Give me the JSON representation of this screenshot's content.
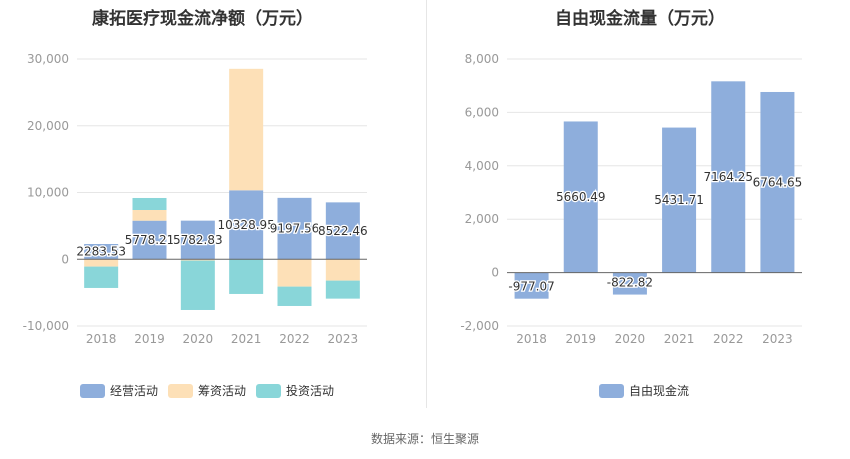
{
  "colors": {
    "operating": "#8eaedc",
    "financing": "#fde0b7",
    "investing": "#89d6d9",
    "fcf": "#8eaedc",
    "grid": "#e6e6e6",
    "axis_text": "#999999",
    "axis_line": "#666666"
  },
  "left_title": "康拓医疗现金流净额（万元）",
  "right_title": "自由现金流量（万元）",
  "source": "数据来源：恒生聚源",
  "chart_data": [
    {
      "type": "bar",
      "stacked": true,
      "title": "康拓医疗现金流净额（万元）",
      "categories": [
        "2018",
        "2019",
        "2020",
        "2021",
        "2022",
        "2023"
      ],
      "series": [
        {
          "name": "经营活动",
          "color_key": "operating",
          "values": [
            2283.53,
            5778.21,
            5782.83,
            10328.95,
            9197.56,
            8522.46
          ]
        },
        {
          "name": "筹资活动",
          "color_key": "financing",
          "values": [
            -1100,
            1600,
            -200,
            18200,
            -4100,
            -3200
          ]
        },
        {
          "name": "投资活动",
          "color_key": "investing",
          "values": [
            -3200,
            1800,
            -7400,
            -5200,
            -2900,
            -2700
          ]
        }
      ],
      "data_labels": [
        "2283.53",
        "5778.21",
        "5782.83",
        "10328.95",
        "9197.56",
        "8522.46"
      ],
      "ylim": [
        -10000,
        30000
      ],
      "yticks": [
        -10000,
        0,
        10000,
        20000,
        30000
      ],
      "ytick_labels": [
        "-10,000",
        "0",
        "10,000",
        "20,000",
        "30,000"
      ],
      "legend_position": "bottom-left",
      "grid": true
    },
    {
      "type": "bar",
      "stacked": false,
      "title": "自由现金流量（万元）",
      "categories": [
        "2018",
        "2019",
        "2020",
        "2021",
        "2022",
        "2023"
      ],
      "series": [
        {
          "name": "自由现金流",
          "color_key": "fcf",
          "values": [
            -977.07,
            5660.49,
            -822.82,
            5431.71,
            7164.25,
            6764.65
          ]
        }
      ],
      "data_labels": [
        "-977.07",
        "5660.49",
        "-822.82",
        "5431.71",
        "7164.25",
        "6764.65"
      ],
      "ylim": [
        -2000,
        8000
      ],
      "yticks": [
        -2000,
        0,
        2000,
        4000,
        6000,
        8000
      ],
      "ytick_labels": [
        "-2,000",
        "0",
        "2,000",
        "4,000",
        "6,000",
        "8,000"
      ],
      "legend_position": "bottom-center",
      "grid": true
    }
  ]
}
